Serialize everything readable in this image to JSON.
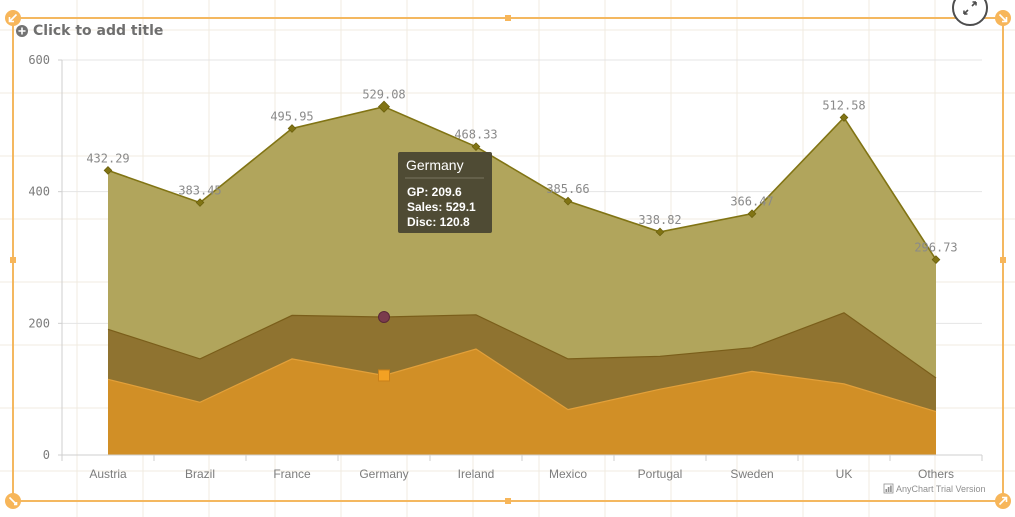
{
  "title_placeholder": "Click to add title",
  "credit": "AnyChart Trial Version",
  "colors": {
    "sales_fill": "#b1a55c",
    "sales_line": "#817414",
    "gp_fill": "#8f7330",
    "gp_line": "#7a5e1a",
    "disc_fill": "#d18f26",
    "disc_line": "#e2a03a",
    "sel_border": "#f4b860",
    "tooltip_bg": "#4a4632"
  },
  "icons": {
    "add_title": "plus-circle-icon",
    "expand": "expand-arrows-icon",
    "credit": "bar-chart-icon"
  },
  "chart_data": {
    "type": "area",
    "categories": [
      "Austria",
      "Brazil",
      "France",
      "Germany",
      "Ireland",
      "Mexico",
      "Portugal",
      "Sweden",
      "UK",
      "Others"
    ],
    "series": [
      {
        "name": "Sales",
        "values": [
          432.29,
          383.45,
          495.95,
          529.08,
          468.33,
          385.66,
          338.82,
          366.47,
          512.58,
          296.73
        ]
      },
      {
        "name": "GP",
        "values": [
          191,
          146,
          212,
          209.6,
          213,
          146,
          150,
          163,
          216,
          117
        ]
      },
      {
        "name": "Disc",
        "values": [
          115,
          80,
          146,
          120.8,
          161,
          69,
          100,
          127,
          108,
          66
        ]
      }
    ],
    "data_labels": [
      "432.29",
      "383.45",
      "495.95",
      "529.08",
      "468.33",
      "385.66",
      "338.82",
      "366.47",
      "512.58",
      "296.73"
    ],
    "ylim": [
      0,
      600
    ],
    "yticks": [
      "0",
      "200",
      "400",
      "600"
    ],
    "grid": true,
    "tooltip": {
      "category": "Germany",
      "rows": [
        "GP: 209.6",
        "Sales: 529.1",
        "Disc: 120.8"
      ]
    }
  }
}
